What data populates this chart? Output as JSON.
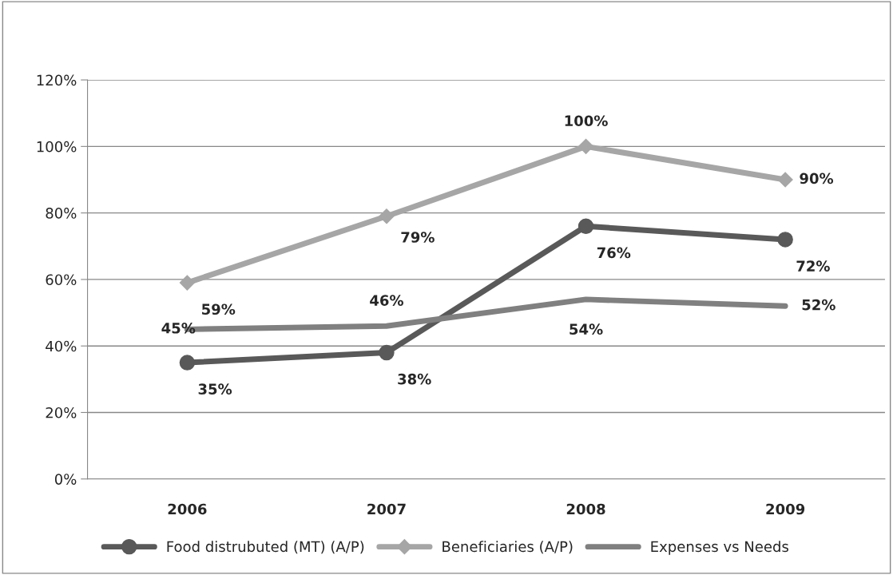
{
  "chart_data": {
    "type": "line",
    "categories": [
      "2006",
      "2007",
      "2008",
      "2009"
    ],
    "series": [
      {
        "name": "Food distrubuted (MT) (A/P)",
        "color": "#595959",
        "marker": "circle",
        "values": [
          35,
          38,
          76,
          72
        ],
        "value_labels": [
          "35%",
          "38%",
          "76%",
          "72%"
        ]
      },
      {
        "name": "Beneficiaries (A/P)",
        "color": "#a6a6a6",
        "marker": "diamond",
        "values": [
          59,
          79,
          100,
          90
        ],
        "value_labels": [
          "59%",
          "79%",
          "100%",
          "90%"
        ]
      },
      {
        "name": "Expenses vs Needs",
        "color": "#808080",
        "marker": "none",
        "values": [
          45,
          46,
          54,
          52
        ],
        "value_labels": [
          "45%",
          "46%",
          "54%",
          "52%"
        ]
      }
    ],
    "ylim": [
      0,
      120
    ],
    "yticks": [
      {
        "value": 0,
        "label": "0%"
      },
      {
        "value": 20,
        "label": "20%"
      },
      {
        "value": 40,
        "label": "40%"
      },
      {
        "value": 60,
        "label": "60%"
      },
      {
        "value": 80,
        "label": "80%"
      },
      {
        "value": 100,
        "label": "100%"
      },
      {
        "value": 120,
        "label": "120%"
      }
    ],
    "grid": "y",
    "legend": "bottom",
    "line_style": "solid"
  }
}
